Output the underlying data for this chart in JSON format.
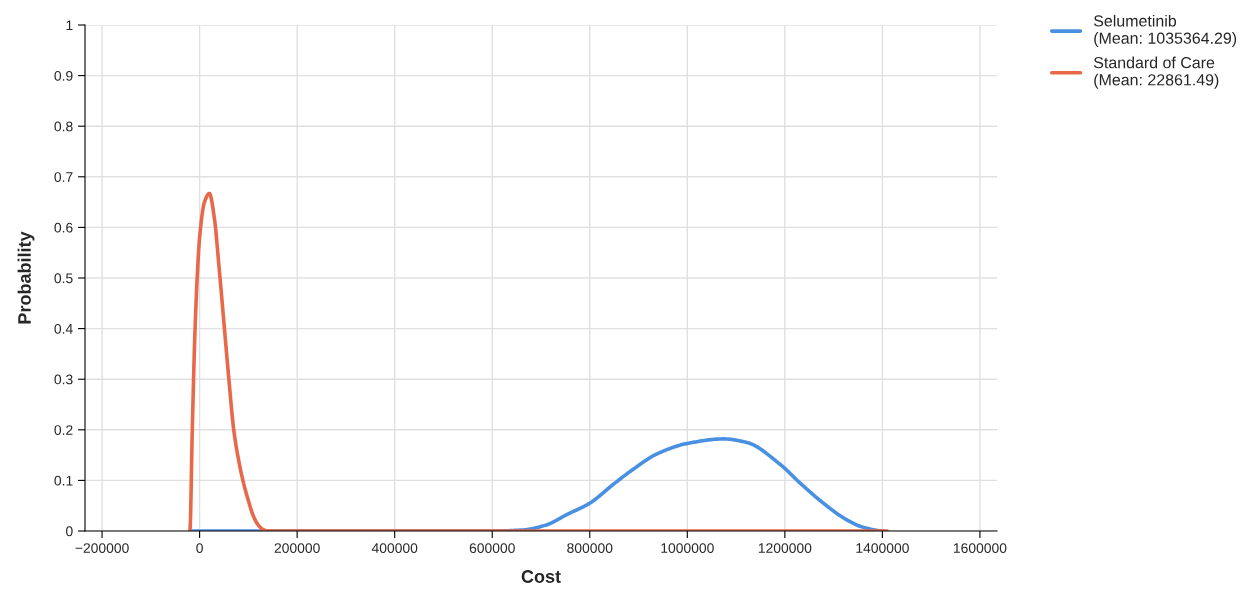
{
  "chart_data": {
    "type": "line",
    "xlabel": "Cost",
    "ylabel": "Probability",
    "series": [
      {
        "name": "Selumetinib\n(Mean: 1035364.29)",
        "color": "#4a90e2",
        "x": [
          -20000,
          600000,
          663000,
          711000,
          752000,
          800000,
          848000,
          889000,
          937000,
          1000000,
          1074000,
          1122000,
          1190000,
          1231000,
          1279000,
          1327000,
          1362000,
          1403000
        ],
        "values": [
          0,
          0,
          0.002,
          0.012,
          0.032,
          0.055,
          0.092,
          0.122,
          0.152,
          0.173,
          0.182,
          0.175,
          0.132,
          0.095,
          0.055,
          0.022,
          0.007,
          0
        ]
      },
      {
        "name": "Standard of Care\n(Mean: 22861.49)",
        "color": "#e8694a",
        "x": [
          -20000,
          -15000,
          -10000,
          -5000,
          0,
          10000,
          20000,
          30000,
          40000,
          50000,
          60000,
          70000,
          80000,
          90000,
          100000,
          110000,
          120000,
          130000,
          140000,
          1410000
        ],
        "values": [
          0,
          0.2,
          0.38,
          0.5,
          0.58,
          0.65,
          0.667,
          0.62,
          0.52,
          0.41,
          0.3,
          0.2,
          0.14,
          0.095,
          0.06,
          0.03,
          0.012,
          0.003,
          0,
          0
        ]
      }
    ],
    "xlim": [
      -235000,
      1635000
    ],
    "xticks": [
      -200000,
      0,
      200000,
      400000,
      600000,
      800000,
      1000000,
      1200000,
      1400000,
      1600000
    ],
    "ylim": [
      0,
      1
    ],
    "yticks": [
      0,
      0.1,
      0.2,
      0.3,
      0.4,
      0.5,
      0.6,
      0.7,
      0.8,
      0.9,
      1
    ],
    "grid": true,
    "legend": "top right",
    "line_style": "solid",
    "marker": "none"
  }
}
